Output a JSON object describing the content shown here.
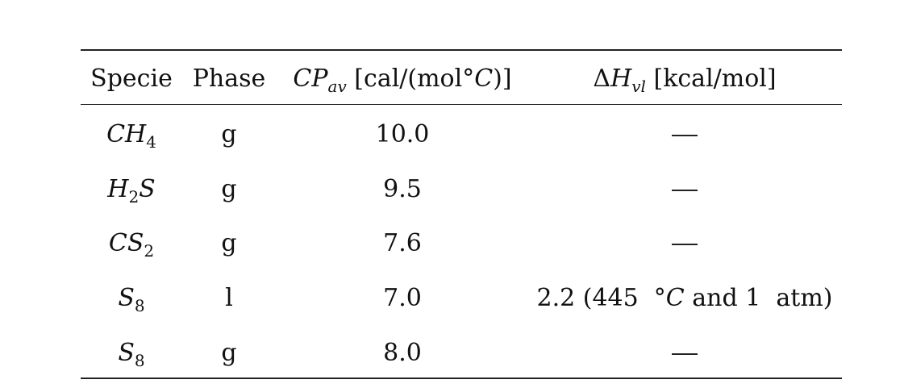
{
  "headers": {
    "specie": "Specie",
    "phase": "Phase",
    "cp_symbol": "CP",
    "cp_sub": "av",
    "cp_unit_open": " [cal/(mol°",
    "cp_unit_c": "C",
    "cp_unit_close": ")]",
    "dh_symbol": "ΔH",
    "dh_sub": "vl",
    "dh_unit": " [kcal/mol]"
  },
  "rows": [
    {
      "species_main": "CH",
      "species_sub": "4",
      "species_tail": "",
      "phase": "g",
      "cp": "10.0",
      "dh": "—"
    },
    {
      "species_main": "H",
      "species_sub": "2",
      "species_tail": "S",
      "phase": "g",
      "cp": "9.5",
      "dh": "—"
    },
    {
      "species_main": "CS",
      "species_sub": "2",
      "species_tail": "",
      "phase": "g",
      "cp": "7.6",
      "dh": "—"
    },
    {
      "species_main": "S",
      "species_sub": "8",
      "species_tail": "",
      "phase": "l",
      "cp": "7.0",
      "dh_pre": "2.2 (445  °",
      "dh_c": "C",
      "dh_post": " and 1  atm)"
    },
    {
      "species_main": "S",
      "species_sub": "8",
      "species_tail": "",
      "phase": "g",
      "cp": "8.0",
      "dh": "—"
    }
  ]
}
